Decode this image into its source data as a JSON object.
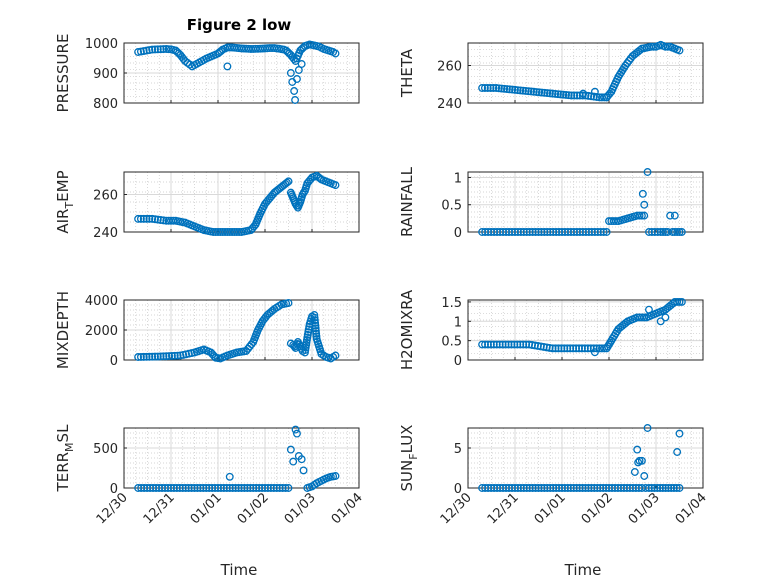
{
  "figure": {
    "title": "Figure 2 low"
  },
  "colors": {
    "marker": "#0072BD",
    "axis": "#262626",
    "grid_major": "#d9d9d9",
    "grid_minor": "#c8c8c8"
  },
  "x_axis": {
    "label": "Time",
    "ticks": [
      "12/30",
      "12/31",
      "01/01",
      "01/02",
      "01/03",
      "01/04"
    ],
    "range_days": [
      0,
      5
    ]
  },
  "chart_data": [
    {
      "type": "scatter",
      "ylabel": "PRESSURE",
      "ylim": [
        800,
        1000
      ],
      "yticks": [
        {
          "v": 800,
          "l": "800"
        },
        {
          "v": 900,
          "l": "900"
        },
        {
          "v": 1000,
          "l": "1000"
        }
      ],
      "grid": true,
      "marker": "circle",
      "series": [
        {
          "x": [
            0.3,
            0.6,
            0.9,
            1.0,
            1.1,
            1.2,
            1.3,
            1.45,
            1.6,
            1.75,
            1.9,
            2.0,
            2.1,
            2.2,
            2.3,
            2.5,
            2.7,
            2.9,
            3.0,
            3.1,
            3.2,
            3.3,
            3.4
          ],
          "y": [
            970,
            978,
            980,
            979,
            975,
            960,
            940,
            922,
            935,
            948,
            958,
            965,
            978,
            985,
            985,
            982,
            980,
            981,
            982,
            983,
            983,
            981,
            978
          ],
          "mode": "dense"
        },
        {
          "x": [
            3.45,
            3.55,
            3.65,
            3.75,
            3.85,
            3.95,
            4.05,
            4.15,
            4.25,
            4.35,
            4.45,
            4.5
          ],
          "y": [
            975,
            960,
            940,
            975,
            990,
            995,
            992,
            988,
            980,
            975,
            970,
            965
          ],
          "mode": "dense"
        },
        {
          "x": [
            2.2,
            3.55,
            3.58,
            3.62,
            3.64,
            3.68,
            3.72,
            3.78
          ],
          "y": [
            922,
            900,
            870,
            840,
            810,
            880,
            910,
            930
          ],
          "mode": "points"
        }
      ]
    },
    {
      "type": "scatter",
      "ylabel": "THETA",
      "ylim": [
        240,
        272
      ],
      "yticks": [
        {
          "v": 240,
          "l": "240"
        },
        {
          "v": 260,
          "l": "260"
        }
      ],
      "grid": true,
      "marker": "circle",
      "series": [
        {
          "x": [
            0.3,
            0.6,
            1.0,
            1.4,
            1.8,
            2.2,
            2.5,
            2.8,
            2.95,
            3.05,
            3.2,
            3.35,
            3.5,
            3.7,
            3.9,
            4.0,
            4.1,
            4.2,
            4.3,
            4.4,
            4.5
          ],
          "y": [
            248,
            248,
            247,
            246,
            245,
            244,
            244,
            243,
            243,
            246,
            254,
            260,
            265,
            269,
            270,
            270,
            271,
            270,
            270,
            269,
            268
          ],
          "mode": "dense"
        },
        {
          "x": [
            2.45,
            2.7,
            2.95
          ],
          "y": [
            245,
            246,
            243
          ],
          "mode": "points"
        }
      ]
    },
    {
      "type": "scatter",
      "ylabel": "AIR_TEMP",
      "ylim": [
        240,
        272
      ],
      "yticks": [
        {
          "v": 240,
          "l": "240"
        },
        {
          "v": 260,
          "l": "260"
        }
      ],
      "grid": true,
      "marker": "circle",
      "series": [
        {
          "x": [
            0.3,
            0.6,
            0.9,
            1.1,
            1.3,
            1.5,
            1.7,
            1.9,
            2.1,
            2.3,
            2.5,
            2.7,
            2.8,
            2.9,
            3.0,
            3.1,
            3.2,
            3.3,
            3.4,
            3.5
          ],
          "y": [
            247,
            247,
            246,
            246,
            245,
            243,
            241,
            240,
            240,
            240,
            240,
            241,
            244,
            250,
            255,
            258,
            261,
            263,
            265,
            267
          ],
          "mode": "dense"
        },
        {
          "x": [
            3.55,
            3.6,
            3.65,
            3.7,
            3.75,
            3.8,
            3.85,
            3.9,
            4.0,
            4.1,
            4.2,
            4.3,
            4.4,
            4.5
          ],
          "y": [
            261,
            258,
            255,
            253,
            256,
            260,
            262,
            266,
            269,
            270,
            268,
            267,
            266,
            265
          ],
          "mode": "dense"
        }
      ]
    },
    {
      "type": "scatter",
      "ylabel": "RAINFALL",
      "ylim": [
        0,
        1.1
      ],
      "yticks": [
        {
          "v": 0,
          "l": "0"
        },
        {
          "v": 0.5,
          "l": "0.5"
        },
        {
          "v": 1,
          "l": "1"
        }
      ],
      "grid": true,
      "marker": "circle",
      "series": [
        {
          "x": [
            0.3,
            1.0,
            2.0,
            2.7,
            2.95
          ],
          "y": [
            0,
            0,
            0,
            0,
            0
          ],
          "mode": "dense"
        },
        {
          "x": [
            3.0,
            3.2,
            3.4,
            3.6,
            3.75
          ],
          "y": [
            0.2,
            0.2,
            0.25,
            0.3,
            0.3
          ],
          "mode": "dense"
        },
        {
          "x": [
            3.85,
            4.1,
            4.25
          ],
          "y": [
            0,
            0,
            0
          ],
          "mode": "dense"
        },
        {
          "x": [
            4.35,
            4.55
          ],
          "y": [
            0,
            0
          ],
          "mode": "dense"
        },
        {
          "x": [
            3.72,
            3.75,
            3.82,
            4.3,
            4.4
          ],
          "y": [
            0.7,
            0.5,
            1.1,
            0.3,
            0.3
          ],
          "mode": "points"
        }
      ]
    },
    {
      "type": "scatter",
      "ylabel": "MIXDEPTH",
      "ylim": [
        0,
        4000
      ],
      "yticks": [
        {
          "v": 0,
          "l": "0"
        },
        {
          "v": 2000,
          "l": "2000"
        },
        {
          "v": 4000,
          "l": "4000"
        }
      ],
      "grid": true,
      "marker": "circle",
      "series": [
        {
          "x": [
            0.3,
            0.6,
            0.9,
            1.2,
            1.5,
            1.7,
            1.85,
            1.95,
            2.05,
            2.2,
            2.4,
            2.6,
            2.75,
            2.85,
            2.95,
            3.05,
            3.2,
            3.35,
            3.5
          ],
          "y": [
            200,
            220,
            250,
            300,
            500,
            700,
            500,
            150,
            100,
            300,
            500,
            600,
            1200,
            2000,
            2600,
            3000,
            3400,
            3700,
            3800
          ],
          "mode": "dense"
        },
        {
          "x": [
            3.55,
            3.6,
            3.65,
            3.7,
            3.75,
            3.8,
            3.85,
            3.9,
            3.95,
            4.0,
            4.05,
            4.1,
            4.15,
            4.2,
            4.3,
            4.4,
            4.5
          ],
          "y": [
            1100,
            1000,
            800,
            1200,
            900,
            600,
            500,
            1500,
            2400,
            2900,
            3000,
            1400,
            900,
            400,
            200,
            100,
            300
          ],
          "mode": "dense"
        }
      ]
    },
    {
      "type": "scatter",
      "ylabel": "H2OMIXRA",
      "ylim": [
        0,
        1.55
      ],
      "yticks": [
        {
          "v": 0,
          "l": "0"
        },
        {
          "v": 0.5,
          "l": "0.5"
        },
        {
          "v": 1,
          "l": "1"
        },
        {
          "v": 1.5,
          "l": "1.5"
        }
      ],
      "grid": true,
      "marker": "circle",
      "series": [
        {
          "x": [
            0.3,
            0.8,
            1.3,
            1.8,
            2.3,
            2.8,
            2.95,
            3.05,
            3.2,
            3.4,
            3.6,
            3.8,
            4.0,
            4.2,
            4.4,
            4.55
          ],
          "y": [
            0.4,
            0.4,
            0.4,
            0.3,
            0.3,
            0.3,
            0.3,
            0.5,
            0.8,
            1.0,
            1.1,
            1.1,
            1.2,
            1.3,
            1.5,
            1.5
          ],
          "mode": "dense"
        },
        {
          "x": [
            2.7,
            3.85,
            4.1,
            4.2
          ],
          "y": [
            0.2,
            1.3,
            1.0,
            1.1
          ],
          "mode": "points"
        }
      ]
    },
    {
      "type": "scatter",
      "ylabel": "TERR_MSL",
      "ylim": [
        0,
        750
      ],
      "yticks": [
        {
          "v": 0,
          "l": "0"
        },
        {
          "v": 500,
          "l": "500"
        }
      ],
      "grid": true,
      "marker": "circle",
      "series": [
        {
          "x": [
            0.3,
            1.0,
            2.0,
            3.0,
            3.5
          ],
          "y": [
            0,
            0,
            0,
            0,
            0
          ],
          "mode": "dense"
        },
        {
          "x": [
            3.9,
            4.0,
            4.1,
            4.2,
            4.3,
            4.4,
            4.5
          ],
          "y": [
            0,
            20,
            60,
            90,
            120,
            140,
            150
          ],
          "mode": "dense"
        },
        {
          "x": [
            2.25,
            3.55,
            3.6,
            3.65,
            3.68,
            3.72,
            3.78,
            3.82
          ],
          "y": [
            140,
            480,
            330,
            730,
            680,
            400,
            360,
            220
          ],
          "mode": "points"
        }
      ]
    },
    {
      "type": "scatter",
      "ylabel": "SUN_FLUX",
      "ylim": [
        0,
        7.5
      ],
      "yticks": [
        {
          "v": 0,
          "l": "0"
        },
        {
          "v": 5,
          "l": "5"
        }
      ],
      "grid": true,
      "marker": "circle",
      "series": [
        {
          "x": [
            0.3,
            1.0,
            2.0,
            3.0,
            3.7
          ],
          "y": [
            0,
            0,
            0,
            0,
            0
          ],
          "mode": "dense"
        },
        {
          "x": [
            3.85,
            4.5
          ],
          "y": [
            0,
            0
          ],
          "mode": "dense"
        },
        {
          "x": [
            3.55,
            3.6,
            3.62,
            3.65,
            3.7,
            3.75,
            3.78,
            3.82,
            4.45,
            4.5
          ],
          "y": [
            2,
            4.8,
            3.2,
            3.4,
            3.4,
            1.5,
            0,
            7.5,
            4.5,
            6.8
          ],
          "mode": "points"
        }
      ]
    }
  ]
}
